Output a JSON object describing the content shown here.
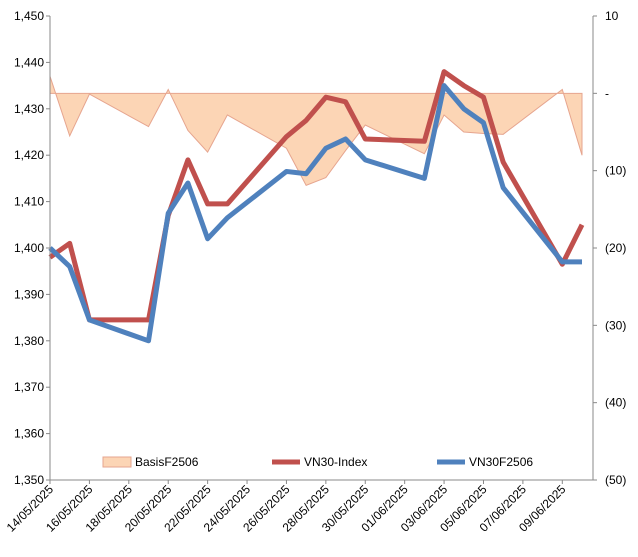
{
  "chart_data": {
    "type": "line",
    "x": [
      "14/05/2025",
      "15/05/2025",
      "16/05/2025",
      "19/05/2025",
      "20/05/2025",
      "21/05/2025",
      "22/05/2025",
      "23/05/2025",
      "26/05/2025",
      "27/05/2025",
      "28/05/2025",
      "29/05/2025",
      "30/05/2025",
      "02/06/2025",
      "03/06/2025",
      "04/06/2025",
      "05/06/2025",
      "06/06/2025",
      "09/06/2025",
      "10/06/2025"
    ],
    "series": [
      {
        "name": "BasisF2506",
        "kind": "area",
        "axis": "y2",
        "color": "#fcd5b5",
        "values": [
          2.2,
          -5.5,
          -0.1,
          -4.3,
          0.5,
          -4.8,
          -7.6,
          -2.8,
          -7.1,
          -11.9,
          -10.9,
          -7.4,
          -4.1,
          -7.8,
          -2.8,
          -5.0,
          -5.2,
          -5.3,
          0.5,
          -8.0
        ]
      },
      {
        "name": "VN30-Index",
        "kind": "line",
        "color": "#c0504d",
        "values": [
          1398,
          1401,
          1384.5,
          1384.5,
          1407,
          1419,
          1409.5,
          1409.5,
          1424,
          1427.5,
          1432.5,
          1431.5,
          1423.5,
          1423,
          1438,
          1435,
          1432.5,
          1418.5,
          1396.5,
          1405
        ]
      },
      {
        "name": "VN30F2506",
        "kind": "line",
        "color": "#4f81bd",
        "values": [
          1400,
          1396,
          1384.5,
          1380,
          1407.5,
          1414,
          1402,
          1406.5,
          1416.5,
          1416,
          1421.5,
          1423.5,
          1419,
          1415,
          1435,
          1430,
          1427,
          1413,
          1397,
          1397
        ]
      }
    ],
    "xlim": [
      "14/05/2025",
      "10/06/2025"
    ],
    "xticks": [
      "14/05/2025",
      "16/05/2025",
      "18/05/2025",
      "20/05/2025",
      "22/05/2025",
      "24/05/2025",
      "26/05/2025",
      "28/05/2025",
      "30/05/2025",
      "01/06/2025",
      "03/06/2025",
      "05/06/2025",
      "07/06/2025",
      "09/06/2025"
    ],
    "ylim": [
      1350,
      1450
    ],
    "yticks": [
      {
        "value": 1350,
        "label": "1,350"
      },
      {
        "value": 1360,
        "label": "1,360"
      },
      {
        "value": 1370,
        "label": "1,370"
      },
      {
        "value": 1380,
        "label": "1,380"
      },
      {
        "value": 1390,
        "label": "1,390"
      },
      {
        "value": 1400,
        "label": "1,400"
      },
      {
        "value": 1410,
        "label": "1,410"
      },
      {
        "value": 1420,
        "label": "1,420"
      },
      {
        "value": 1430,
        "label": "1,430"
      },
      {
        "value": 1440,
        "label": "1,440"
      },
      {
        "value": 1450,
        "label": "1,450"
      }
    ],
    "y2lim": [
      -50,
      10
    ],
    "y2ticks": [
      {
        "value": -50,
        "label": "(50)"
      },
      {
        "value": -40,
        "label": "(40)"
      },
      {
        "value": -30,
        "label": "(30)"
      },
      {
        "value": -20,
        "label": "(20)"
      },
      {
        "value": -10,
        "label": "(10)"
      },
      {
        "value": 0,
        "label": "-"
      },
      10
    ],
    "legend": "bottom"
  }
}
